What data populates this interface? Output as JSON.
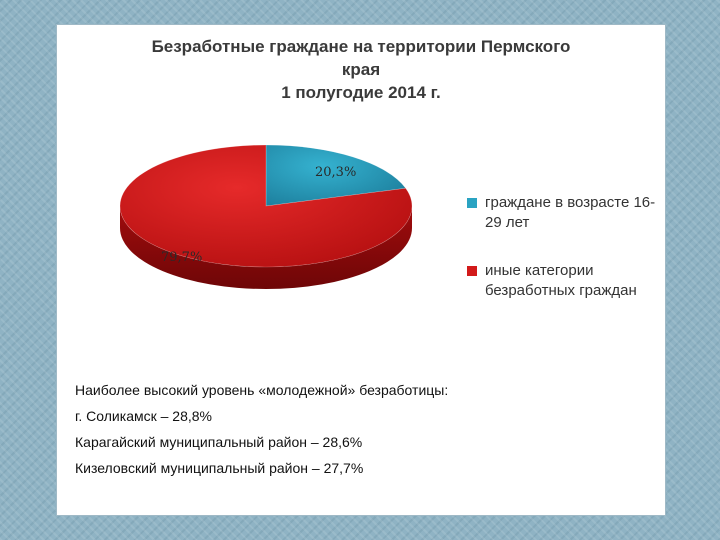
{
  "chart_data": {
    "type": "pie",
    "title_lines": [
      "Безработные граждане на территории Пермского",
      "края",
      "1 полугодие 2014 г."
    ],
    "categories": [
      "граждане в возрасте 16-29 лет",
      "иные категории безработных граждан"
    ],
    "values": [
      20.3,
      79.7
    ],
    "value_labels": [
      "20,3%",
      "79,7%"
    ],
    "colors": [
      "#2aa3c2",
      "#d21a1a"
    ],
    "legend_position": "right"
  },
  "legend": {
    "items": [
      {
        "label": "граждане в возрасте 16-29 лет",
        "color": "#2aa3c2"
      },
      {
        "label": "иные категории безработных граждан",
        "color": "#d21a1a"
      }
    ]
  },
  "notes": {
    "lines": [
      "Наиболее высокий уровень «молодежной» безработицы:",
      "г. Соликамск – 28,8%",
      "Карагайский муниципальный район – 28,6%",
      "Кизеловский муниципальный район – 27,7%"
    ]
  }
}
